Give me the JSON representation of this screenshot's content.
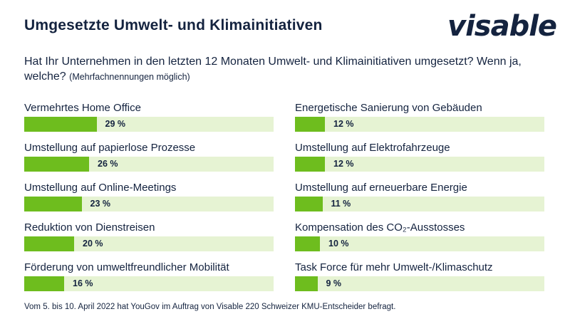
{
  "header": {
    "title": "Umgesetzte Umwelt- und Klimainitiativen",
    "logo": "visable"
  },
  "question": {
    "text": "Hat Ihr Unternehmen in den letzten 12 Monaten Umwelt- und Klimainitiativen umgesetzt? Wenn ja, welche?",
    "note": "(Mehrfachnennungen möglich)"
  },
  "footer": "Vom 5. bis 10. April 2022 hat YouGov im Auftrag von Visable 220 Schweizer KMU-Entscheider befragt.",
  "colors": {
    "bar": "#6ebd1e",
    "track": "#e6f3d3",
    "text": "#14233f"
  },
  "chart_data": {
    "type": "bar",
    "orientation": "horizontal",
    "unit": "%",
    "xlim": [
      0,
      100
    ],
    "columns": [
      {
        "items": [
          {
            "label": "Vermehrtes Home Office",
            "value": 29,
            "value_label": "29 %"
          },
          {
            "label": "Umstellung auf papierlose Prozesse",
            "value": 26,
            "value_label": "26 %"
          },
          {
            "label": "Umstellung auf Online-Meetings",
            "value": 23,
            "value_label": "23 %"
          },
          {
            "label": "Reduktion von Dienstreisen",
            "value": 20,
            "value_label": "20 %"
          },
          {
            "label": "Förderung von umweltfreundlicher Mobilität",
            "value": 16,
            "value_label": "16 %"
          }
        ]
      },
      {
        "items": [
          {
            "label": "Energetische Sanierung von Gebäuden",
            "value": 12,
            "value_label": "12 %"
          },
          {
            "label": "Umstellung auf Elektrofahrzeuge",
            "value": 12,
            "value_label": "12 %"
          },
          {
            "label": "Umstellung auf erneuerbare Energie",
            "value": 11,
            "value_label": "11 %"
          },
          {
            "label": "Kompensation des CO₂-Ausstosses",
            "value": 10,
            "value_label": "10 %"
          },
          {
            "label": "Task Force für mehr Umwelt-/Klimaschutz",
            "value": 9,
            "value_label": "9 %"
          }
        ]
      }
    ]
  }
}
